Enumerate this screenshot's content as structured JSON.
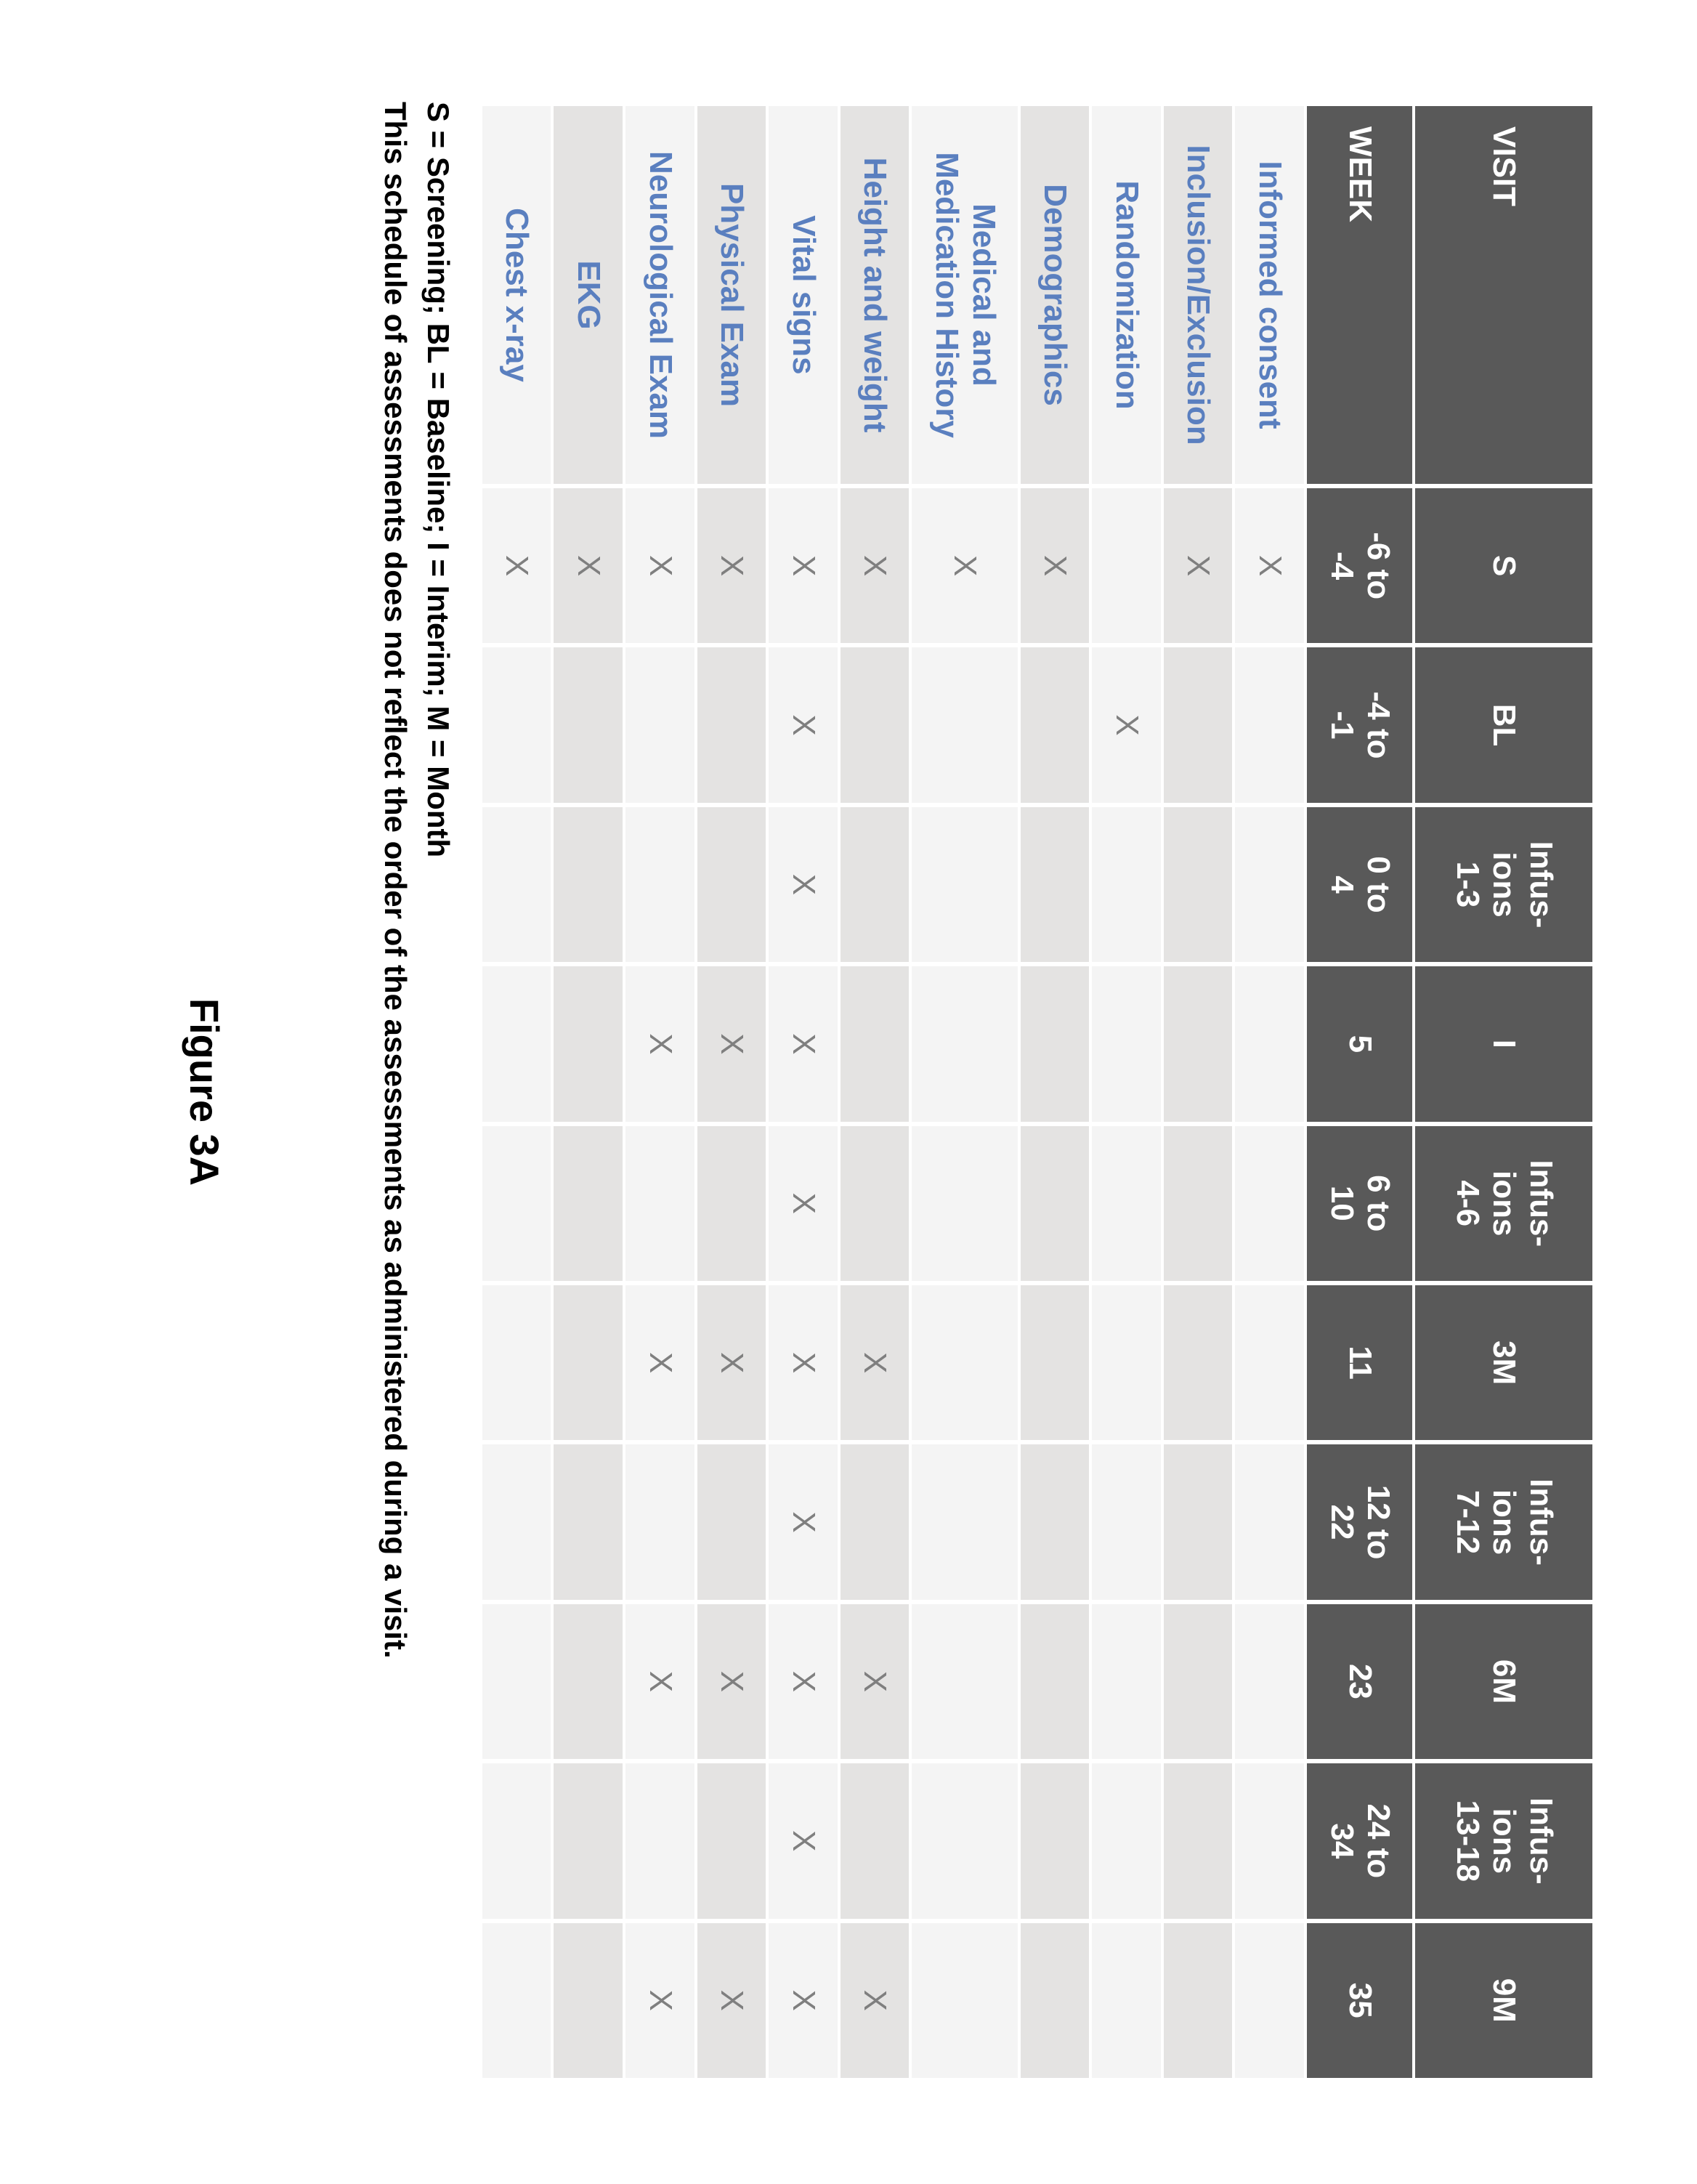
{
  "colors": {
    "header_bg": "#595959",
    "header_fg": "#ffffff",
    "row_odd_bg": "#f4f4f4",
    "row_even_bg": "#e4e3e2",
    "label_fg": "#5a7fbf",
    "mark_fg": "#7f7f7f",
    "page_bg": "#ffffff"
  },
  "table": {
    "visit_header": "VISIT",
    "week_header": "WEEK",
    "visit_cols": [
      "S",
      "BL",
      "Infus-\nions\n1-3",
      "I",
      "Infus-\nions\n4-6",
      "3M",
      "Infus-\nions\n7-12",
      "6M",
      "Infus-\nions\n13-18",
      "9M"
    ],
    "week_cols": [
      "-6 to\n-4",
      "-4 to\n-1",
      "0 to\n4",
      "5",
      "6 to\n10",
      "11",
      "12 to\n22",
      "23",
      "24 to\n34",
      "35"
    ],
    "rows": [
      {
        "label": "Informed consent",
        "marks": [
          "X",
          "",
          "",
          "",
          "",
          "",
          "",
          "",
          "",
          ""
        ]
      },
      {
        "label": "Inclusion/Exclusion",
        "marks": [
          "X",
          "",
          "",
          "",
          "",
          "",
          "",
          "",
          "",
          ""
        ]
      },
      {
        "label": "Randomization",
        "marks": [
          "",
          "X",
          "",
          "",
          "",
          "",
          "",
          "",
          "",
          ""
        ]
      },
      {
        "label": "Demographics",
        "marks": [
          "X",
          "",
          "",
          "",
          "",
          "",
          "",
          "",
          "",
          ""
        ]
      },
      {
        "label": "Medical and\nMedication History",
        "marks": [
          "X",
          "",
          "",
          "",
          "",
          "",
          "",
          "",
          "",
          ""
        ]
      },
      {
        "label": "Height and weight",
        "marks": [
          "X",
          "",
          "",
          "",
          "",
          "X",
          "",
          "X",
          "",
          "X"
        ]
      },
      {
        "label": "Vital signs",
        "marks": [
          "X",
          "X",
          "X",
          "X",
          "X",
          "X",
          "X",
          "X",
          "X",
          "X"
        ]
      },
      {
        "label": "Physical Exam",
        "marks": [
          "X",
          "",
          "",
          "X",
          "",
          "X",
          "",
          "X",
          "",
          "X"
        ]
      },
      {
        "label": "Neurological Exam",
        "marks": [
          "X",
          "",
          "",
          "X",
          "",
          "X",
          "",
          "X",
          "",
          "X"
        ]
      },
      {
        "label": "EKG",
        "marks": [
          "X",
          "",
          "",
          "",
          "",
          "",
          "",
          "",
          "",
          ""
        ]
      },
      {
        "label": "Chest x-ray",
        "marks": [
          "X",
          "",
          "",
          "",
          "",
          "",
          "",
          "",
          "",
          ""
        ]
      }
    ]
  },
  "footnotes": {
    "legend": "S = Screening; BL = Baseline; I = Interim; M = Month",
    "note": "This schedule of assessments does not reflect the order of the assessments as administered during a visit."
  },
  "figure_label": "Figure 3A"
}
